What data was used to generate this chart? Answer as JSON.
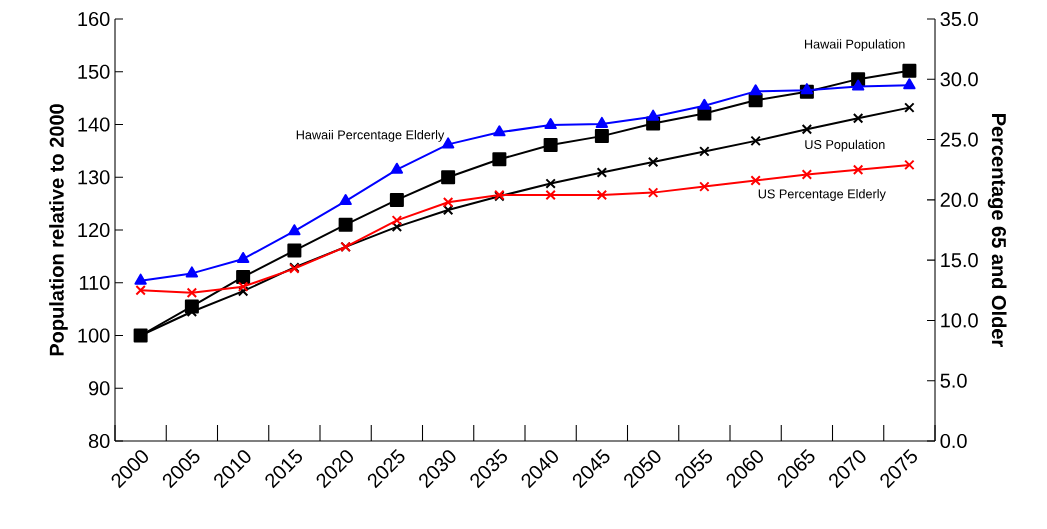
{
  "chart_data": {
    "type": "line",
    "ylabel": "Population relative to 2000",
    "y2label": "Percentage 65 and Older",
    "categories": [
      "2000",
      "2005",
      "2010",
      "2015",
      "2020",
      "2025",
      "2030",
      "2035",
      "2040",
      "2045",
      "2050",
      "2055",
      "2060",
      "2065",
      "2070",
      "2075"
    ],
    "ylim": [
      80,
      160
    ],
    "yticks": [
      80,
      90,
      100,
      110,
      120,
      130,
      140,
      150,
      160
    ],
    "y2lim": [
      0,
      35
    ],
    "y2ticks": [
      {
        "value": 0,
        "label": "0.0"
      },
      {
        "value": 5,
        "label": "5.0"
      },
      {
        "value": 10,
        "label": "10.0"
      },
      {
        "value": 15,
        "label": "15.0"
      },
      {
        "value": 20,
        "label": "20.0"
      },
      {
        "value": 25,
        "label": "25.0"
      },
      {
        "value": 30,
        "label": "30.0"
      },
      {
        "value": 35,
        "label": "35.0"
      }
    ],
    "series": [
      {
        "name": "Hawaii Population",
        "color": "#000000",
        "marker": "square",
        "values": [
          100,
          105.5,
          111.1,
          116.1,
          121.0,
          125.7,
          130.0,
          133.4,
          136.1,
          137.8,
          140.2,
          142.1,
          144.6,
          146.2,
          148.6,
          150.2
        ]
      },
      {
        "name": "US Population",
        "color": "#000000",
        "marker": "cross",
        "values": [
          100,
          104.5,
          108.4,
          112.9,
          116.8,
          120.6,
          123.8,
          126.4,
          128.8,
          130.9,
          132.9,
          134.9,
          136.9,
          139.1,
          141.2,
          143.2
        ]
      },
      {
        "name": "Hawaii Percentage Elderly",
        "color": "#0000ff",
        "marker": "triangle",
        "axis": "y2",
        "values": [
          13.3,
          13.9,
          15.1,
          17.4,
          19.9,
          22.5,
          24.6,
          25.6,
          26.2,
          26.3,
          26.9,
          27.8,
          29.0,
          29.1,
          29.4,
          29.5
        ]
      },
      {
        "name": "US Percentage Elderly",
        "color": "#ff0000",
        "marker": "cross",
        "axis": "y2",
        "values": [
          12.5,
          12.3,
          12.8,
          14.3,
          16.1,
          18.3,
          19.8,
          20.4,
          20.4,
          20.4,
          20.6,
          21.1,
          21.6,
          22.1,
          22.5,
          22.9
        ]
      }
    ]
  }
}
